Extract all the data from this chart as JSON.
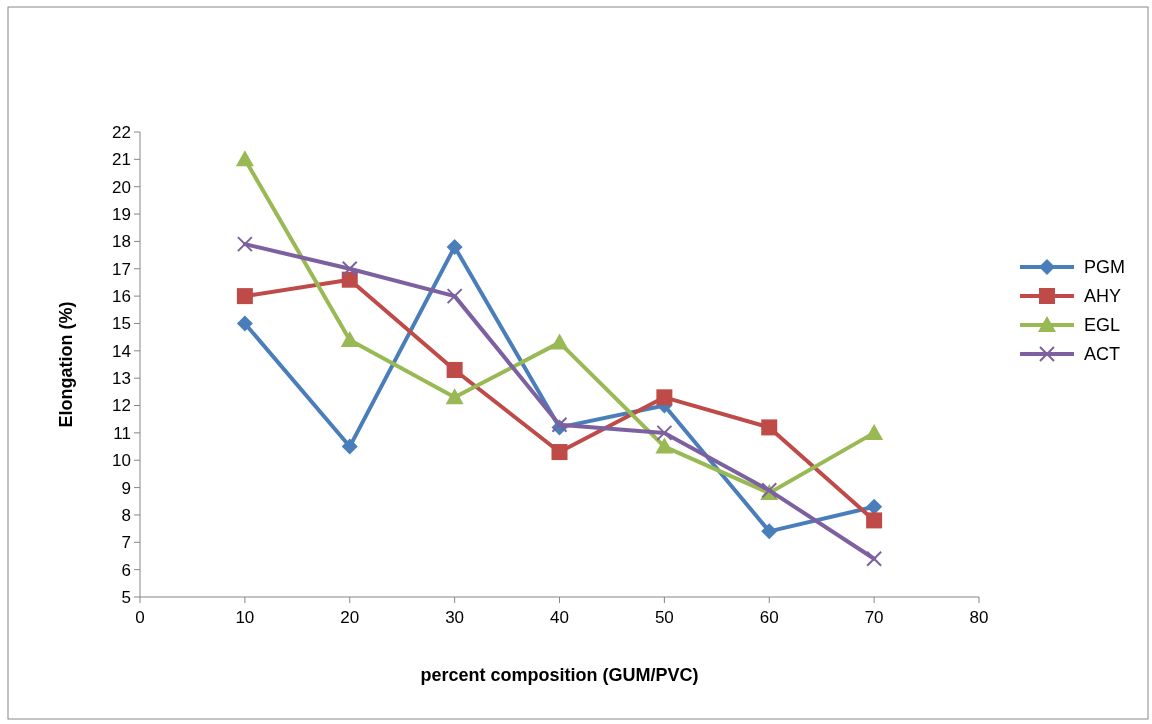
{
  "chart_data": {
    "type": "line",
    "xlabel": "percent composition (GUM/PVC)",
    "ylabel": "Elongation (%)",
    "x": [
      10,
      20,
      30,
      40,
      50,
      60,
      70
    ],
    "series": [
      {
        "name": "PGM",
        "color": "#4a7ebb",
        "marker": "diamond",
        "values": [
          15,
          10.5,
          17.8,
          11.2,
          12,
          7.4,
          8.3
        ]
      },
      {
        "name": "AHY",
        "color": "#be4b48",
        "marker": "square",
        "values": [
          16,
          16.6,
          13.3,
          10.3,
          12.3,
          11.2,
          7.8
        ]
      },
      {
        "name": "EGL",
        "color": "#98b954",
        "marker": "triangle",
        "values": [
          21,
          14.4,
          12.3,
          14.3,
          10.5,
          8.8,
          11
        ]
      },
      {
        "name": "ACT",
        "color": "#7d60a0",
        "marker": "cross",
        "values": [
          17.9,
          17,
          16,
          11.3,
          11,
          8.9,
          6.4
        ]
      }
    ],
    "xlim": [
      0,
      80
    ],
    "xticks": [
      0,
      10,
      20,
      30,
      40,
      50,
      60,
      70,
      80
    ],
    "ylim": [
      5,
      22
    ],
    "yticks": [
      5,
      6,
      7,
      8,
      9,
      10,
      11,
      12,
      13,
      14,
      15,
      16,
      17,
      18,
      19,
      20,
      21,
      22
    ],
    "grid": false,
    "legend": "right",
    "line_style": "solid"
  }
}
